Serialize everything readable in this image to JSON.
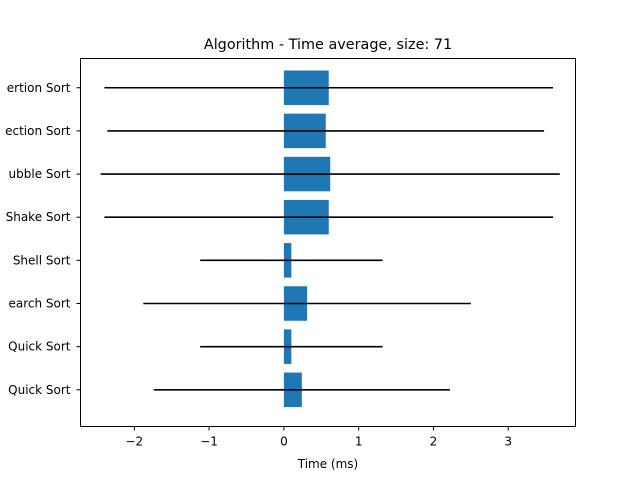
{
  "chart_data": {
    "type": "bar",
    "orientation": "horizontal",
    "title": "Algorithm - Time average, size: 71",
    "xlabel": "Time (ms)",
    "ylabel": "",
    "xlim": [
      -2.72,
      3.9
    ],
    "xticks": [
      -2,
      -1,
      0,
      1,
      2,
      3
    ],
    "xtick_labels": [
      "−2",
      "−1",
      "0",
      "1",
      "2",
      "3"
    ],
    "categories": [
      "ertion Sort",
      "ection Sort",
      "ubble Sort",
      "Shake Sort",
      "Shell Sort",
      "earch Sort",
      "Quick Sort",
      "Quick Sort"
    ],
    "values": [
      0.6,
      0.56,
      0.62,
      0.6,
      0.1,
      0.31,
      0.1,
      0.24
    ],
    "error": [
      3.0,
      2.92,
      3.07,
      3.0,
      1.22,
      2.19,
      1.22,
      1.98
    ],
    "grid": false,
    "colors": {
      "bar": "#1f77b4",
      "errorbar": "#000000",
      "axis": "#000000"
    }
  }
}
